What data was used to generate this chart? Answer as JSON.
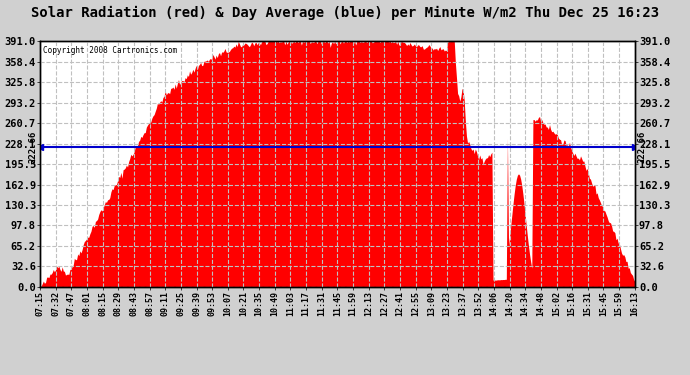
{
  "title": "Solar Radiation (red) & Day Average (blue) per Minute W/m2 Thu Dec 25 16:23",
  "copyright": "Copyright 2008 Cartronics.com",
  "day_average": 222.66,
  "y_max": 391.0,
  "y_min": 0.0,
  "y_ticks": [
    0.0,
    32.6,
    65.2,
    97.8,
    130.3,
    162.9,
    195.5,
    228.1,
    260.7,
    293.2,
    325.8,
    358.4,
    391.0
  ],
  "background_color": "#d0d0d0",
  "plot_bg_color": "#ffffff",
  "fill_color": "#ff0000",
  "avg_line_color": "#0000cc",
  "grid_color": "#c0c0c0",
  "title_fontsize": 10,
  "x_label_fontsize": 6,
  "y_label_fontsize": 7.5,
  "avg_label": "222.66",
  "x_tick_labels": [
    "07:15",
    "07:32",
    "07:47",
    "08:01",
    "08:15",
    "08:29",
    "08:43",
    "08:57",
    "09:11",
    "09:25",
    "09:39",
    "09:53",
    "10:07",
    "10:21",
    "10:35",
    "10:49",
    "11:03",
    "11:17",
    "11:31",
    "11:45",
    "11:59",
    "12:13",
    "12:27",
    "12:41",
    "12:55",
    "13:09",
    "13:23",
    "13:37",
    "13:52",
    "14:06",
    "14:20",
    "14:34",
    "14:48",
    "15:02",
    "15:16",
    "15:31",
    "15:45",
    "15:59",
    "16:13"
  ]
}
